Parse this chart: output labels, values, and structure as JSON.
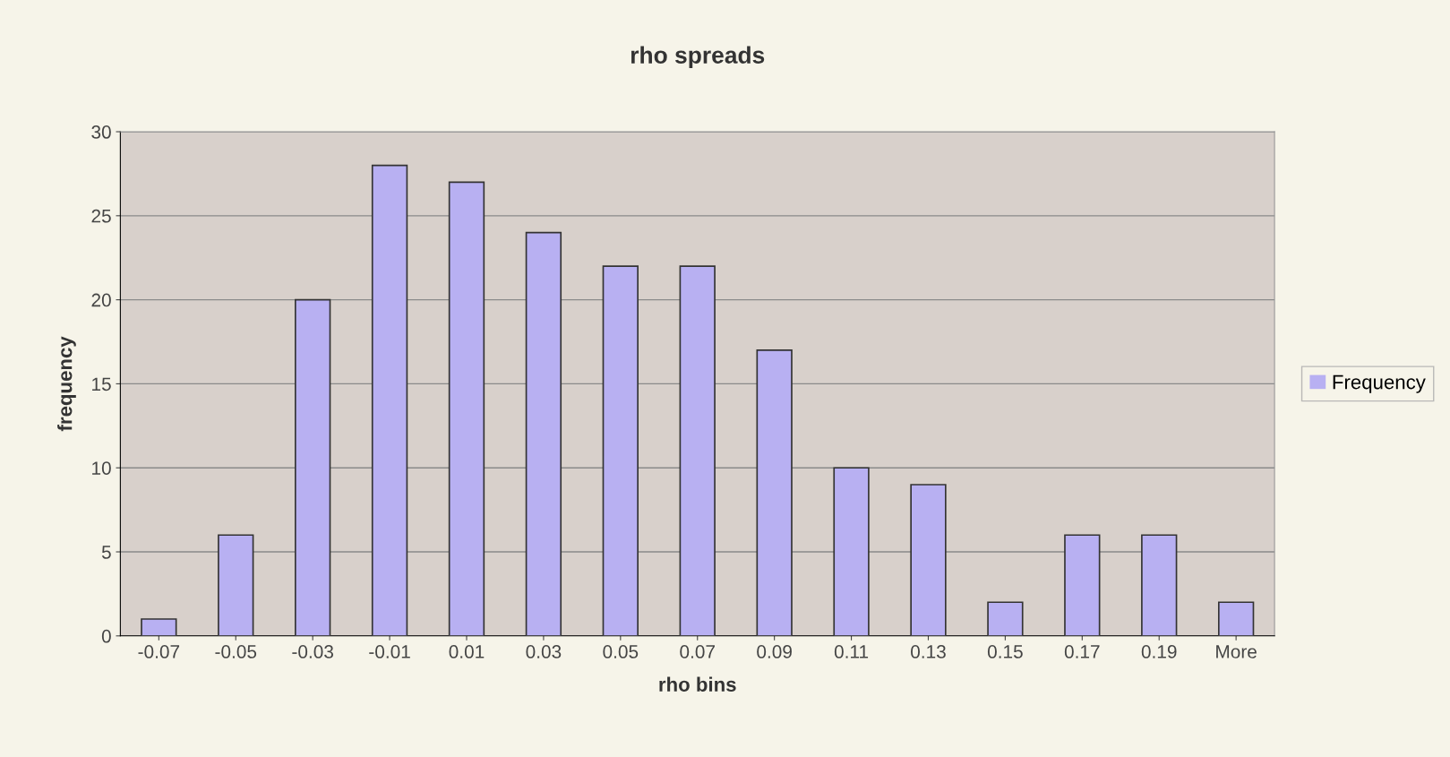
{
  "chart_data": {
    "type": "bar",
    "title": "rho spreads",
    "xlabel": "rho bins",
    "ylabel": "frequency",
    "categories": [
      "-0.07",
      "-0.05",
      "-0.03",
      "-0.01",
      "0.01",
      "0.03",
      "0.05",
      "0.07",
      "0.09",
      "0.11",
      "0.13",
      "0.15",
      "0.17",
      "0.19",
      "More"
    ],
    "series": [
      {
        "name": "Frequency",
        "color": "#b8b0f2",
        "values": [
          1,
          6,
          20,
          28,
          27,
          24,
          22,
          22,
          17,
          10,
          9,
          2,
          6,
          6,
          2
        ]
      }
    ],
    "ylim": [
      0,
      30
    ],
    "yticks": [
      0,
      5,
      10,
      15,
      20,
      25,
      30
    ],
    "grid": "y",
    "legend": "right"
  }
}
